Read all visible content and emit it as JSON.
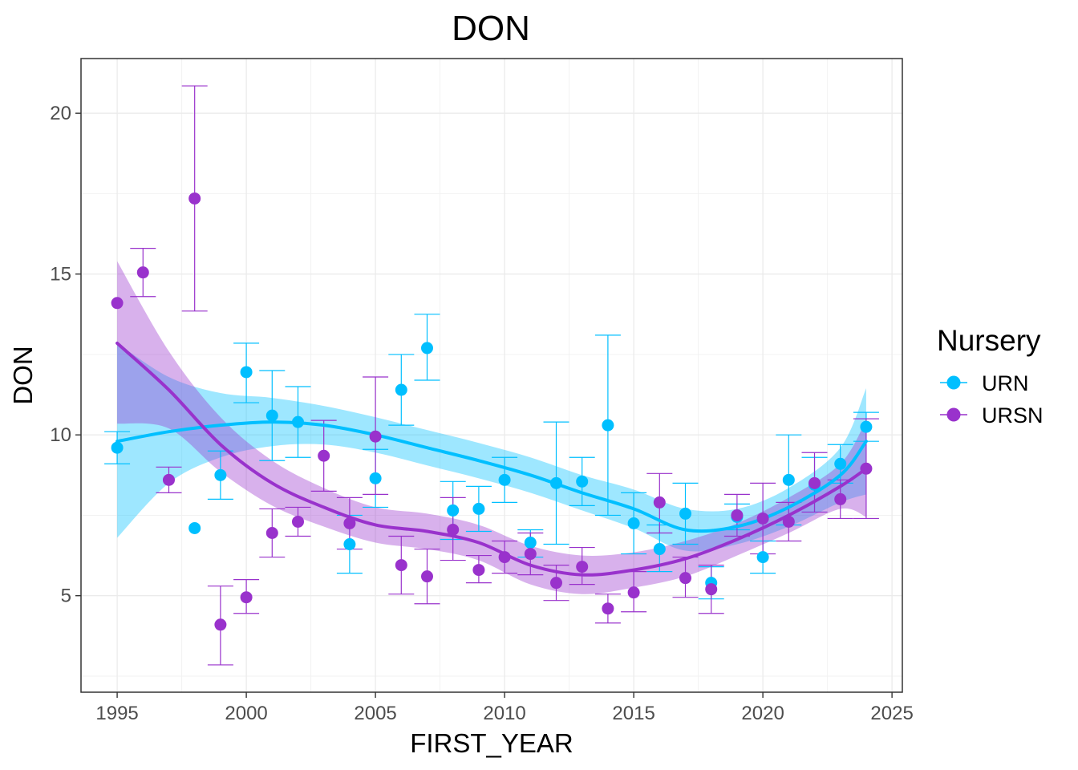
{
  "chart_data": {
    "type": "scatter",
    "title": "DON",
    "xlabel": "FIRST_YEAR",
    "ylabel": "DON",
    "xlim": [
      1993.6,
      2025.4
    ],
    "ylim": [
      2.0,
      21.7
    ],
    "x_ticks": [
      1995,
      2000,
      2005,
      2010,
      2015,
      2020,
      2025
    ],
    "y_ticks": [
      5,
      10,
      15,
      20
    ],
    "grid": true,
    "legend": {
      "title": "Nursery",
      "position": "right"
    },
    "series": [
      {
        "name": "URN",
        "color": "#00bfff",
        "points": [
          {
            "x": 1995,
            "y": 9.6,
            "lo": 9.1,
            "hi": 10.1
          },
          {
            "x": 1998,
            "y": 7.1
          },
          {
            "x": 1999,
            "y": 8.75,
            "lo": 8.0,
            "hi": 9.5
          },
          {
            "x": 2000,
            "y": 11.95,
            "lo": 11.0,
            "hi": 12.85
          },
          {
            "x": 2001,
            "y": 10.6,
            "lo": 9.2,
            "hi": 12.0
          },
          {
            "x": 2002,
            "y": 10.4,
            "lo": 9.3,
            "hi": 11.5
          },
          {
            "x": 2004,
            "y": 6.6,
            "lo": 5.7,
            "hi": 7.5
          },
          {
            "x": 2005,
            "y": 8.65,
            "lo": 7.75,
            "hi": 9.55
          },
          {
            "x": 2006,
            "y": 11.4,
            "lo": 10.3,
            "hi": 12.5
          },
          {
            "x": 2007,
            "y": 12.7,
            "lo": 11.7,
            "hi": 13.75
          },
          {
            "x": 2008,
            "y": 7.65,
            "lo": 6.75,
            "hi": 8.55
          },
          {
            "x": 2009,
            "y": 7.7,
            "lo": 7.0,
            "hi": 8.4
          },
          {
            "x": 2010,
            "y": 8.6,
            "lo": 7.9,
            "hi": 9.3
          },
          {
            "x": 2011,
            "y": 6.65,
            "lo": 6.2,
            "hi": 7.05
          },
          {
            "x": 2012,
            "y": 8.5,
            "lo": 6.6,
            "hi": 10.4
          },
          {
            "x": 2013,
            "y": 8.55,
            "lo": 7.8,
            "hi": 9.3
          },
          {
            "x": 2014,
            "y": 10.3,
            "lo": 7.5,
            "hi": 13.1
          },
          {
            "x": 2015,
            "y": 7.25,
            "lo": 6.3,
            "hi": 8.2
          },
          {
            "x": 2016,
            "y": 6.45,
            "lo": 5.75,
            "hi": 7.2
          },
          {
            "x": 2017,
            "y": 7.55,
            "lo": 6.6,
            "hi": 8.5
          },
          {
            "x": 2018,
            "y": 5.4,
            "lo": 4.9,
            "hi": 5.9
          },
          {
            "x": 2019,
            "y": 7.45,
            "lo": 7.05,
            "hi": 7.85
          },
          {
            "x": 2020,
            "y": 6.2,
            "lo": 5.7,
            "hi": 6.7
          },
          {
            "x": 2021,
            "y": 8.6,
            "lo": 7.2,
            "hi": 10.0
          },
          {
            "x": 2022,
            "y": 8.45,
            "lo": 7.6,
            "hi": 9.3
          },
          {
            "x": 2023,
            "y": 9.1,
            "lo": 8.5,
            "hi": 9.7
          },
          {
            "x": 2024,
            "y": 10.25,
            "lo": 9.8,
            "hi": 10.7
          }
        ],
        "smooth": [
          {
            "x": 1995,
            "y": 9.8,
            "lo": 6.8,
            "hi": 12.85
          },
          {
            "x": 1997,
            "y": 10.1,
            "lo": 8.5,
            "hi": 11.8
          },
          {
            "x": 1999,
            "y": 10.3,
            "lo": 9.3,
            "hi": 11.3
          },
          {
            "x": 2001,
            "y": 10.4,
            "lo": 9.65,
            "hi": 11.15
          },
          {
            "x": 2003,
            "y": 10.3,
            "lo": 9.7,
            "hi": 10.9
          },
          {
            "x": 2005,
            "y": 10.0,
            "lo": 9.45,
            "hi": 10.55
          },
          {
            "x": 2007,
            "y": 9.6,
            "lo": 9.05,
            "hi": 10.15
          },
          {
            "x": 2009,
            "y": 9.2,
            "lo": 8.65,
            "hi": 9.75
          },
          {
            "x": 2011,
            "y": 8.75,
            "lo": 8.2,
            "hi": 9.3
          },
          {
            "x": 2013,
            "y": 8.2,
            "lo": 7.65,
            "hi": 8.75
          },
          {
            "x": 2015,
            "y": 7.7,
            "lo": 7.1,
            "hi": 8.3
          },
          {
            "x": 2017,
            "y": 7.05,
            "lo": 6.4,
            "hi": 7.7
          },
          {
            "x": 2019,
            "y": 7.15,
            "lo": 6.6,
            "hi": 7.7
          },
          {
            "x": 2021,
            "y": 7.75,
            "lo": 7.15,
            "hi": 8.35
          },
          {
            "x": 2023,
            "y": 8.75,
            "lo": 7.9,
            "hi": 9.6
          },
          {
            "x": 2024,
            "y": 9.8,
            "lo": 8.15,
            "hi": 11.45
          }
        ]
      },
      {
        "name": "URSN",
        "color": "#9932cc",
        "points": [
          {
            "x": 1995,
            "y": 14.1
          },
          {
            "x": 1996,
            "y": 15.05,
            "lo": 14.3,
            "hi": 15.8
          },
          {
            "x": 1997,
            "y": 8.6,
            "lo": 8.2,
            "hi": 9.0
          },
          {
            "x": 1998,
            "y": 17.35,
            "lo": 13.85,
            "hi": 20.85
          },
          {
            "x": 1999,
            "y": 4.1,
            "lo": 2.85,
            "hi": 5.3
          },
          {
            "x": 2000,
            "y": 4.95,
            "lo": 4.45,
            "hi": 5.5
          },
          {
            "x": 2001,
            "y": 6.95,
            "lo": 6.2,
            "hi": 7.7
          },
          {
            "x": 2002,
            "y": 7.3,
            "lo": 6.85,
            "hi": 7.75
          },
          {
            "x": 2003,
            "y": 9.35,
            "lo": 8.25,
            "hi": 10.45
          },
          {
            "x": 2004,
            "y": 7.25,
            "lo": 6.45,
            "hi": 8.05
          },
          {
            "x": 2005,
            "y": 9.95,
            "lo": 8.15,
            "hi": 11.8
          },
          {
            "x": 2006,
            "y": 5.95,
            "lo": 5.05,
            "hi": 6.85
          },
          {
            "x": 2007,
            "y": 5.6,
            "lo": 4.75,
            "hi": 6.45
          },
          {
            "x": 2008,
            "y": 7.05,
            "lo": 6.1,
            "hi": 8.05
          },
          {
            "x": 2009,
            "y": 5.8,
            "lo": 5.4,
            "hi": 6.25
          },
          {
            "x": 2010,
            "y": 6.2,
            "lo": 5.7,
            "hi": 6.7
          },
          {
            "x": 2011,
            "y": 6.3,
            "lo": 5.65,
            "hi": 6.95
          },
          {
            "x": 2012,
            "y": 5.4,
            "lo": 4.85,
            "hi": 5.95
          },
          {
            "x": 2013,
            "y": 5.9,
            "lo": 5.35,
            "hi": 6.5
          },
          {
            "x": 2014,
            "y": 4.6,
            "lo": 4.15,
            "hi": 5.05
          },
          {
            "x": 2015,
            "y": 5.1,
            "lo": 4.5,
            "hi": 5.75
          },
          {
            "x": 2016,
            "y": 7.9,
            "lo": 6.95,
            "hi": 8.8
          },
          {
            "x": 2017,
            "y": 5.55,
            "lo": 4.95,
            "hi": 6.2
          },
          {
            "x": 2018,
            "y": 5.2,
            "lo": 4.45,
            "hi": 5.95
          },
          {
            "x": 2019,
            "y": 7.5,
            "lo": 6.85,
            "hi": 8.15
          },
          {
            "x": 2020,
            "y": 7.4,
            "lo": 6.3,
            "hi": 8.5
          },
          {
            "x": 2021,
            "y": 7.3,
            "lo": 6.7,
            "hi": 7.9
          },
          {
            "x": 2022,
            "y": 8.5,
            "lo": 7.6,
            "hi": 9.45
          },
          {
            "x": 2023,
            "y": 8.0,
            "lo": 7.4,
            "hi": 8.6
          },
          {
            "x": 2024,
            "y": 8.95,
            "lo": 7.4,
            "hi": 10.5
          }
        ],
        "smooth": [
          {
            "x": 1995,
            "y": 12.85,
            "lo": 10.35,
            "hi": 15.4
          },
          {
            "x": 1997,
            "y": 11.4,
            "lo": 10.2,
            "hi": 12.6
          },
          {
            "x": 1999,
            "y": 9.7,
            "lo": 8.85,
            "hi": 10.55
          },
          {
            "x": 2001,
            "y": 8.5,
            "lo": 7.8,
            "hi": 9.2
          },
          {
            "x": 2003,
            "y": 7.75,
            "lo": 7.15,
            "hi": 8.35
          },
          {
            "x": 2005,
            "y": 7.2,
            "lo": 6.65,
            "hi": 7.75
          },
          {
            "x": 2007,
            "y": 7.0,
            "lo": 6.45,
            "hi": 7.55
          },
          {
            "x": 2009,
            "y": 6.65,
            "lo": 6.1,
            "hi": 7.2
          },
          {
            "x": 2011,
            "y": 5.95,
            "lo": 5.35,
            "hi": 6.55
          },
          {
            "x": 2013,
            "y": 5.65,
            "lo": 5.05,
            "hi": 6.25
          },
          {
            "x": 2015,
            "y": 5.8,
            "lo": 5.25,
            "hi": 6.35
          },
          {
            "x": 2017,
            "y": 6.15,
            "lo": 5.6,
            "hi": 6.7
          },
          {
            "x": 2019,
            "y": 6.75,
            "lo": 6.25,
            "hi": 7.25
          },
          {
            "x": 2021,
            "y": 7.5,
            "lo": 6.95,
            "hi": 8.05
          },
          {
            "x": 2023,
            "y": 8.4,
            "lo": 7.7,
            "hi": 9.1
          },
          {
            "x": 2024,
            "y": 8.95,
            "lo": 7.45,
            "hi": 10.45
          }
        ]
      }
    ]
  }
}
